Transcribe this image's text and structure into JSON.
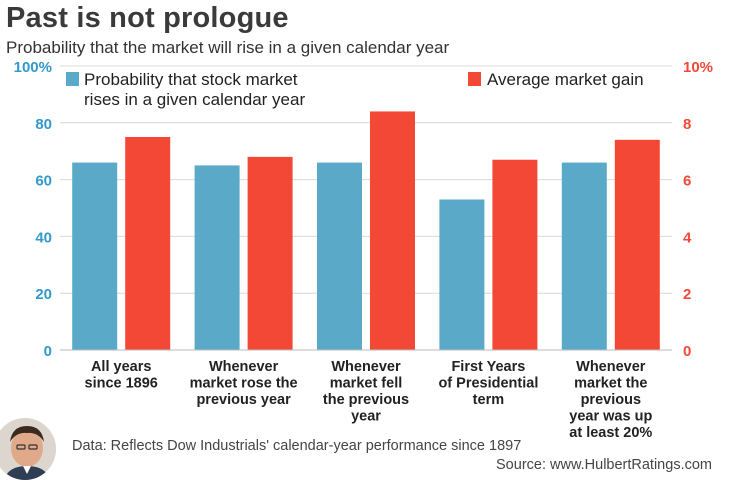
{
  "header": {
    "title": "Past is not prologue",
    "subtitle": "Probability that the market will rise in a given calendar year"
  },
  "footer": {
    "note": "Data: Reflects Dow Industrials' calendar-year performance since 1897",
    "source": "Source: www.HulbertRatings.com"
  },
  "colors": {
    "probability": "#5aa9c9",
    "gain": "#f44836",
    "left_axis": "#3399cc",
    "right_axis": "#f44836"
  },
  "icons": {
    "avatar": "portrait-photo"
  },
  "chart_data": {
    "type": "bar",
    "categories": [
      [
        "All years",
        "since 1896"
      ],
      [
        "Whenever",
        "market rose the",
        "previous year"
      ],
      [
        "Whenever",
        "market fell",
        "the previous",
        "year"
      ],
      [
        "First Years",
        "of Presidential",
        "term"
      ],
      [
        "Whenever",
        "market the",
        "previous",
        "year was up",
        "at least 20%"
      ]
    ],
    "series": [
      {
        "name": "Probability that stock market rises in a given calendar year",
        "legend_lines": [
          "Probability that stock market",
          "rises in a given calendar year"
        ],
        "axis": "left",
        "values": [
          66,
          65,
          66,
          53,
          66
        ]
      },
      {
        "name": "Average market gain",
        "legend_lines": [
          "Average market gain"
        ],
        "axis": "right",
        "values": [
          7.5,
          6.8,
          8.4,
          6.7,
          7.4
        ]
      }
    ],
    "y_left": {
      "min": 0,
      "max": 100,
      "ticks": [
        0,
        20,
        40,
        60,
        80
      ],
      "top_label": "100%"
    },
    "y_right": {
      "min": 0,
      "max": 10,
      "ticks": [
        0,
        2,
        4,
        6,
        8
      ],
      "top_label": "10%"
    },
    "legend_placement": "top",
    "grid": true
  }
}
